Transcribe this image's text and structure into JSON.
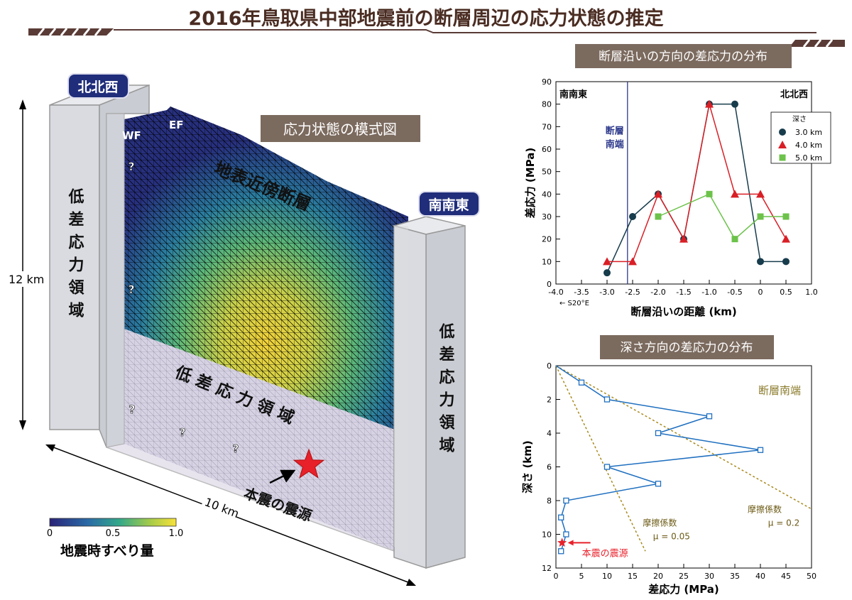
{
  "page_title": "2016年鳥取県中部地震前の断層周辺の応力状態の推定",
  "schematic": {
    "title": "応力状態の模式図",
    "nnw_label": "北北西",
    "sse_label": "南南東",
    "wf_label": "WF",
    "ef_label": "EF",
    "surface_fault_label": "地表近傍断層",
    "low_stress_left": "低差応力領域",
    "low_stress_right": "低差応力領域",
    "low_stress_center": "低差応力領域",
    "question_mark": "?",
    "hypocenter_label": "本震の震源",
    "depth_dim": "12 km",
    "length_dim": "10 km",
    "colorbar_title": "地震時すべり量",
    "colorbar_ticks": [
      "0",
      "0.5",
      "1.0"
    ],
    "colors": {
      "nav_badge": "#1f2d7a",
      "hypocenter": "#e8202a",
      "block": "#d9dbe0"
    }
  },
  "chart_data": [
    {
      "type": "line",
      "title": "断層沿いの方向の差応力の分布",
      "xlabel": "断層沿いの距離 (km)",
      "ylabel": "差応力 (MPa)",
      "xlim": [
        -4.0,
        1.0
      ],
      "ylim": [
        0,
        90
      ],
      "xticks": [
        "-4.0",
        "-3.5",
        "-3.0",
        "-2.5",
        "-2.0",
        "-1.5",
        "-1.0",
        "-0.5",
        "0",
        "0.5",
        "1.0"
      ],
      "yticks": [
        "0",
        "10",
        "20",
        "30",
        "40",
        "50",
        "60",
        "70",
        "80",
        "90"
      ],
      "x_note": "← S20°E",
      "left_label": "南南東",
      "right_label": "北北西",
      "vline": {
        "x": -2.6,
        "label_line1": "断層",
        "label_line2": "南端",
        "color": "#2e3a8c"
      },
      "legend_title": "深さ",
      "legend_position": "top-right",
      "series": [
        {
          "name": "3.0 km",
          "color": "#173c4c",
          "marker": "circle",
          "x": [
            -3.0,
            -2.5,
            -2.0,
            -1.5,
            -1.0,
            -0.5,
            0.0,
            0.5
          ],
          "y": [
            5,
            30,
            40,
            20,
            80,
            80,
            10,
            10
          ]
        },
        {
          "name": "4.0 km",
          "color": "#d91f26",
          "marker": "triangle",
          "x": [
            -3.0,
            -2.5,
            -2.0,
            -1.5,
            -1.0,
            -0.5,
            0.0,
            0.5
          ],
          "y": [
            10,
            10,
            40,
            20,
            80,
            40,
            40,
            20
          ]
        },
        {
          "name": "5.0 km",
          "color": "#6cc24a",
          "marker": "square",
          "x": [
            -2.0,
            -1.0,
            -0.5,
            0.0,
            0.5
          ],
          "y": [
            30,
            40,
            20,
            30,
            30
          ]
        }
      ]
    },
    {
      "type": "line",
      "title": "深さ方向の差応力の分布",
      "xlabel": "差応力 (MPa)",
      "ylabel": "深さ (km)",
      "xlim": [
        0,
        50
      ],
      "ylim": [
        0,
        12
      ],
      "y_inverted": true,
      "xticks": [
        "0",
        "5",
        "10",
        "15",
        "20",
        "25",
        "30",
        "35",
        "40",
        "45",
        "50"
      ],
      "yticks": [
        "0",
        "2",
        "4",
        "6",
        "8",
        "10",
        "12"
      ],
      "corner_label": "断層南端",
      "series": [
        {
          "name": "",
          "color": "#1f6fc0",
          "marker": "open-square",
          "x": [
            5,
            10,
            30,
            20,
            40,
            10,
            20,
            2,
            1,
            2,
            1
          ],
          "y": [
            1,
            2,
            3,
            4,
            5,
            6,
            7,
            8,
            9,
            10,
            11
          ]
        }
      ],
      "friction_lines": [
        {
          "label1": "摩擦係数",
          "label2": "μ = 0.05",
          "color": "#a88a1e",
          "x": [
            0,
            17.5
          ],
          "y": [
            0,
            11
          ]
        },
        {
          "label1": "摩擦係数",
          "label2": "μ = 0.2",
          "color": "#a88a1e",
          "x": [
            0,
            50
          ],
          "y": [
            0,
            8.5
          ]
        }
      ],
      "hypocenter": {
        "label": "本震の震源",
        "x": 1.2,
        "y": 10.5,
        "color": "#e8202a"
      }
    }
  ]
}
